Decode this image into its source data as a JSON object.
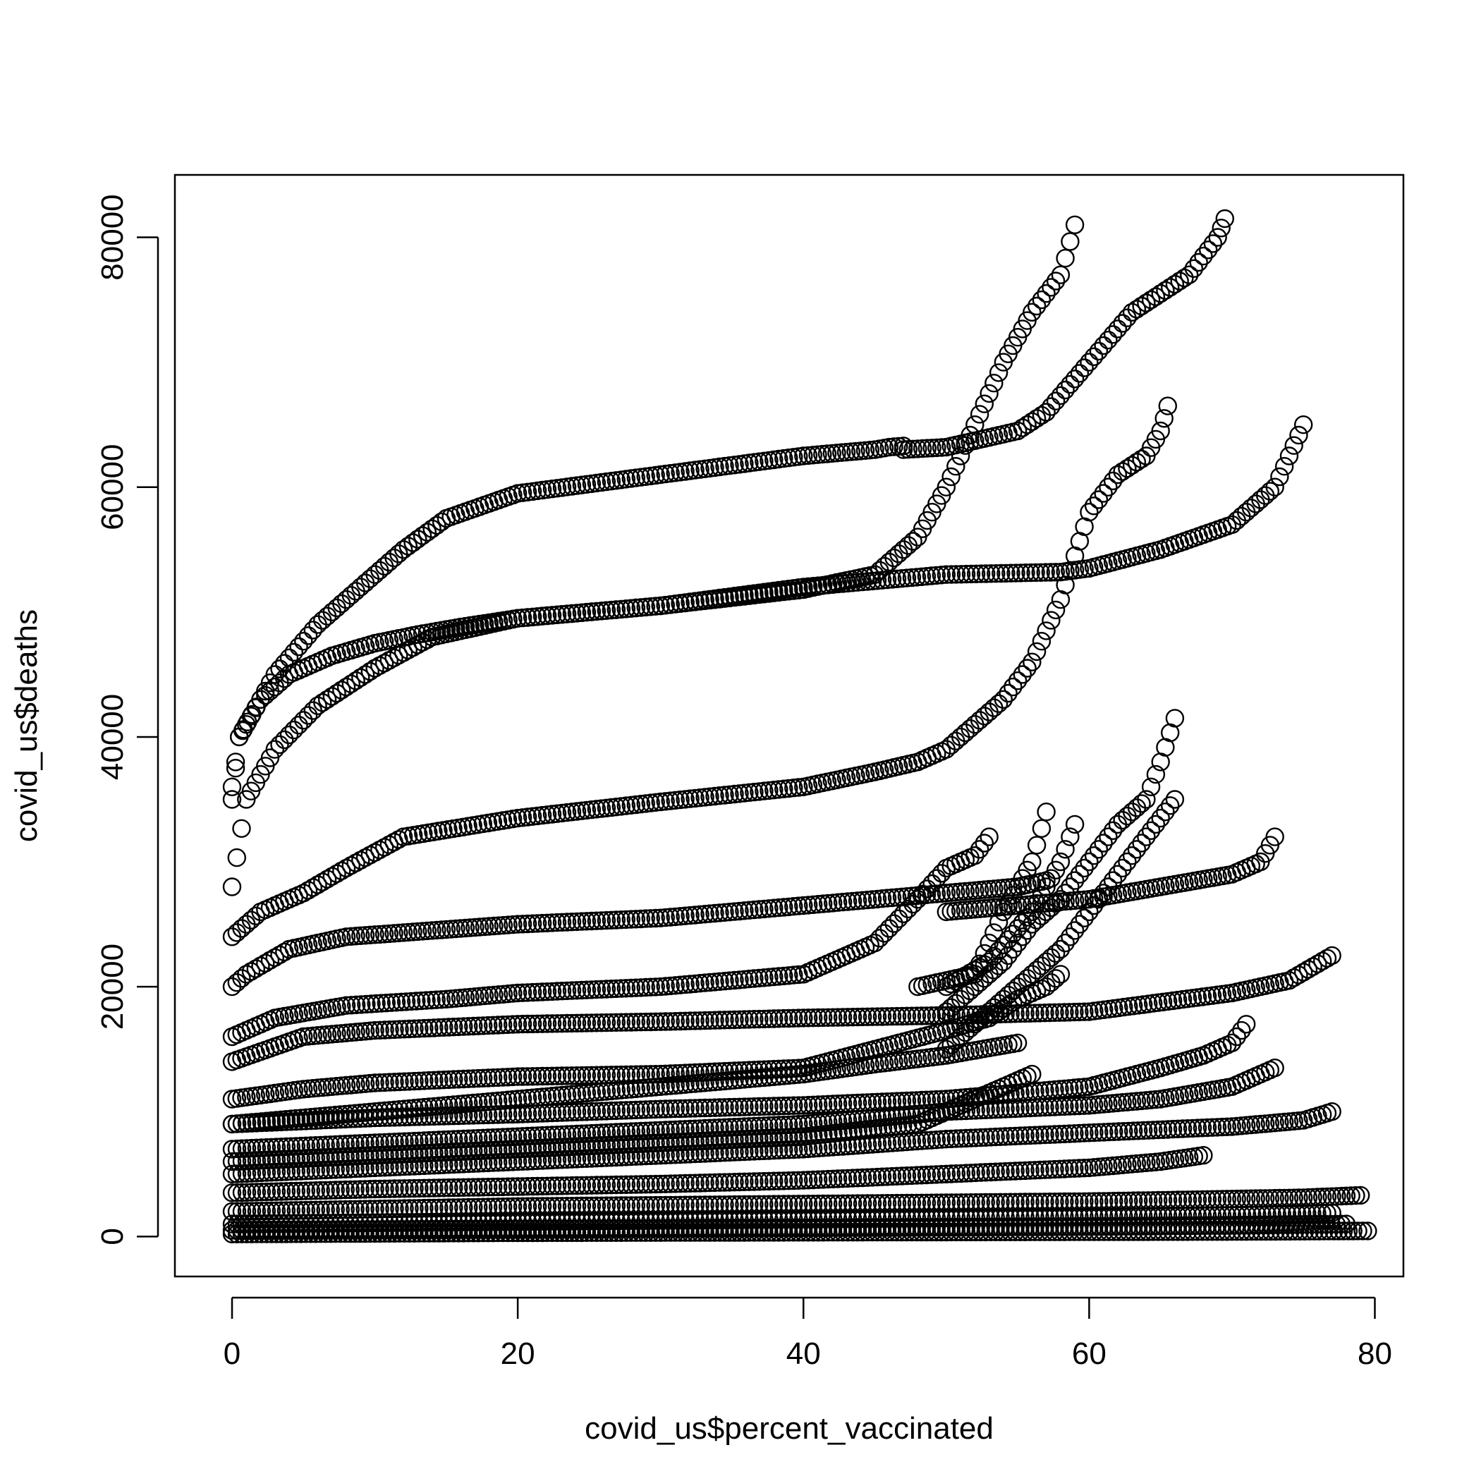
{
  "chart_data": {
    "type": "scatter",
    "title": "",
    "xlabel": "covid_us$percent_vaccinated",
    "ylabel": "covid_us$deaths",
    "xlim": [
      -4,
      82
    ],
    "ylim": [
      -3200,
      85000
    ],
    "xticks": [
      0,
      20,
      40,
      60,
      80
    ],
    "yticks": [
      0,
      20000,
      40000,
      60000,
      80000
    ],
    "xtick_labels": [
      "0",
      "20",
      "40",
      "60",
      "80"
    ],
    "ytick_labels": [
      "0",
      "20000",
      "40000",
      "60000",
      "80000"
    ],
    "grid": false,
    "legend": "none",
    "marker": "open-circle",
    "color": "#000000",
    "series": [
      {
        "x": [
          0,
          0.5,
          2,
          4,
          7,
          10,
          13,
          16,
          20,
          30,
          40,
          45,
          48,
          50,
          52,
          54,
          56,
          58,
          59
        ],
        "y": [
          35000,
          40000,
          43000,
          45000,
          46500,
          47500,
          48200,
          48800,
          49500,
          50500,
          51800,
          53000,
          56000,
          60000,
          65000,
          70000,
          74000,
          77000,
          81000
        ]
      },
      {
        "x": [
          0,
          0.5,
          1,
          3,
          6,
          9,
          12,
          15,
          20,
          30,
          40,
          45,
          46,
          47
        ],
        "y": [
          36000,
          40000,
          41000,
          45000,
          49000,
          52000,
          55000,
          57500,
          59500,
          61000,
          62500,
          63000,
          63200,
          63300
        ]
      },
      {
        "x": [
          47,
          50,
          55,
          57,
          60,
          63,
          65,
          67,
          69,
          69.5
        ],
        "y": [
          63000,
          63200,
          64500,
          66000,
          70000,
          74000,
          75500,
          77000,
          80000,
          81500
        ]
      },
      {
        "x": [
          0,
          1,
          3,
          6,
          10,
          14,
          20,
          30,
          40,
          50,
          58,
          60,
          65,
          70,
          73,
          75
        ],
        "y": [
          28000,
          35000,
          39000,
          42500,
          45500,
          48000,
          49500,
          50500,
          52000,
          53000,
          53200,
          53500,
          55000,
          57000,
          60000,
          65000
        ]
      },
      {
        "x": [
          0,
          2,
          5,
          8,
          12,
          20,
          30,
          40,
          45,
          48,
          50,
          52,
          54,
          56,
          58,
          60,
          62,
          64,
          65,
          65.5
        ],
        "y": [
          24000,
          26000,
          27500,
          29500,
          32000,
          33500,
          34800,
          36000,
          37200,
          38000,
          39000,
          41000,
          43000,
          46000,
          51000,
          58000,
          61000,
          62500,
          64500,
          66500
        ]
      },
      {
        "x": [
          0,
          1,
          4,
          8,
          14,
          20,
          30,
          40,
          50,
          55,
          57
        ],
        "y": [
          20000,
          21000,
          23000,
          24000,
          24500,
          25000,
          25500,
          26500,
          27500,
          28000,
          28500
        ]
      },
      {
        "x": [
          0,
          3,
          8,
          15,
          20,
          30,
          40,
          45,
          48,
          50,
          52,
          53
        ],
        "y": [
          16000,
          17500,
          18500,
          19000,
          19500,
          20000,
          21000,
          23500,
          27000,
          29500,
          30500,
          32000
        ]
      },
      {
        "x": [
          50,
          55,
          60,
          65,
          70,
          72,
          73
        ],
        "y": [
          26000,
          26500,
          27000,
          28000,
          29000,
          30000,
          32000
        ]
      },
      {
        "x": [
          48,
          52,
          54,
          56,
          57
        ],
        "y": [
          20000,
          21000,
          26000,
          30000,
          34000
        ]
      },
      {
        "x": [
          50,
          52,
          54,
          56,
          58,
          60,
          62,
          64,
          65,
          66
        ],
        "y": [
          18000,
          20000,
          22000,
          25000,
          27000,
          30000,
          33000,
          35000,
          38000,
          41500
        ]
      },
      {
        "x": [
          50,
          54,
          58,
          62,
          66
        ],
        "y": [
          15000,
          19000,
          23000,
          29000,
          35000
        ]
      },
      {
        "x": [
          50,
          53,
          56,
          58,
          59
        ],
        "y": [
          20000,
          22000,
          26000,
          30000,
          33000
        ]
      },
      {
        "x": [
          0,
          5,
          10,
          20,
          30,
          40,
          50,
          60,
          70,
          74,
          77
        ],
        "y": [
          14000,
          16000,
          16500,
          17000,
          17200,
          17500,
          17700,
          18000,
          19500,
          20500,
          22500
        ]
      },
      {
        "x": [
          0,
          5,
          10,
          20,
          30,
          40,
          45,
          50,
          53,
          55,
          57,
          58
        ],
        "y": [
          11000,
          11800,
          12300,
          12800,
          13000,
          13500,
          15000,
          16500,
          17500,
          19000,
          20000,
          21000
        ]
      },
      {
        "x": [
          0,
          10,
          20,
          30,
          40,
          50,
          60,
          65,
          68,
          70,
          71
        ],
        "y": [
          9000,
          9500,
          9800,
          10200,
          10500,
          11000,
          12000,
          13500,
          14500,
          15500,
          17000
        ]
      },
      {
        "x": [
          0,
          10,
          20,
          30,
          40,
          50,
          60,
          65,
          70,
          73
        ],
        "y": [
          7000,
          7500,
          8000,
          8500,
          9000,
          10000,
          10500,
          11000,
          12000,
          13500
        ]
      },
      {
        "x": [
          0,
          10,
          20,
          30,
          40,
          50,
          60,
          70,
          75,
          77
        ],
        "y": [
          5000,
          5500,
          6000,
          6500,
          7000,
          7800,
          8300,
          8800,
          9300,
          10000
        ]
      },
      {
        "x": [
          0,
          10,
          20,
          30,
          40,
          45,
          50,
          55
        ],
        "y": [
          9000,
          10000,
          11000,
          12000,
          13000,
          13800,
          14500,
          15500
        ]
      },
      {
        "x": [
          0,
          10,
          20,
          30,
          40,
          50,
          60,
          65,
          68
        ],
        "y": [
          3500,
          3800,
          4000,
          4200,
          4500,
          5000,
          5500,
          6000,
          6500
        ]
      },
      {
        "x": [
          0,
          10,
          20,
          30,
          40,
          48,
          52,
          56
        ],
        "y": [
          6000,
          6500,
          7000,
          7500,
          8000,
          9000,
          11000,
          13000
        ]
      },
      {
        "x": [
          0,
          10,
          20,
          30,
          40,
          50,
          60,
          70,
          75,
          79
        ],
        "y": [
          2000,
          2200,
          2400,
          2500,
          2600,
          2700,
          2800,
          3000,
          3100,
          3300
        ]
      },
      {
        "x": [
          0,
          10,
          20,
          30,
          40,
          50,
          60,
          70,
          77
        ],
        "y": [
          1000,
          1100,
          1200,
          1300,
          1400,
          1500,
          1600,
          1700,
          1900
        ]
      },
      {
        "x": [
          0,
          10,
          20,
          30,
          40,
          50,
          60,
          70,
          79.5
        ],
        "y": [
          200,
          250,
          300,
          320,
          340,
          360,
          380,
          400,
          450
        ]
      },
      {
        "x": [
          0,
          10,
          20,
          30,
          40,
          50,
          60,
          70,
          78
        ],
        "y": [
          500,
          550,
          600,
          650,
          700,
          750,
          800,
          900,
          1000
        ]
      }
    ]
  }
}
